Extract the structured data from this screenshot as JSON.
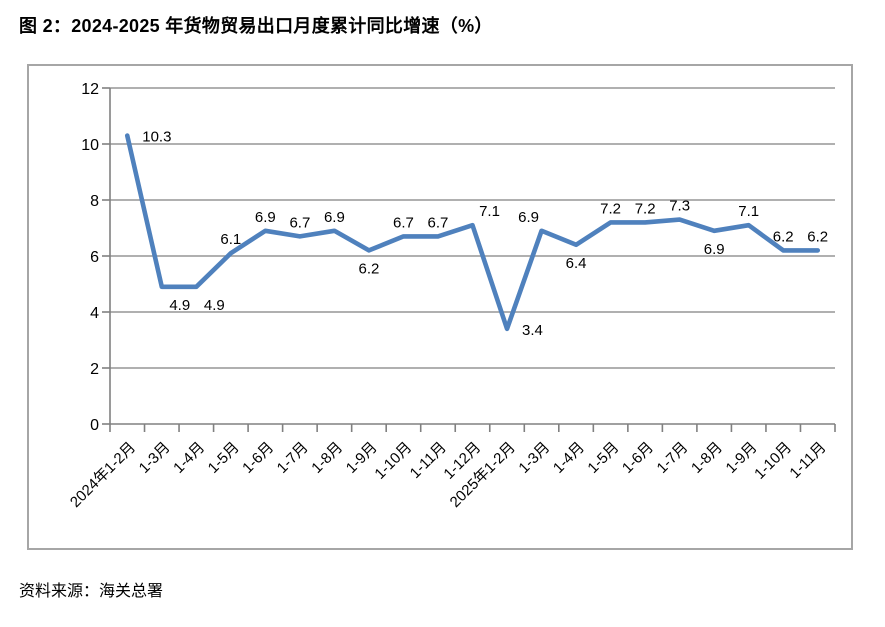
{
  "page": {
    "title": "图 2：2024-2025 年货物贸易出口月度累计同比增速（%）",
    "source": "资料来源：海关总署"
  },
  "colors": {
    "line": "#4F81BD",
    "gridline": "#969696",
    "axis": "#808080",
    "border": "#A6A6A6",
    "text": "#000000",
    "background": "#FFFFFF"
  },
  "chart_data": {
    "type": "line",
    "title": "图 2：2024-2025 年货物贸易出口月度累计同比增速（%）",
    "categories": [
      "2024年1-2月",
      "1-3月",
      "1-4月",
      "1-5月",
      "1-6月",
      "1-7月",
      "1-8月",
      "1-9月",
      "1-10月",
      "1-11月",
      "1-12月",
      "2025年1-2月",
      "1-3月",
      "1-4月",
      "1-5月",
      "1-6月",
      "1-7月",
      "1-8月",
      "1-9月",
      "1-10月",
      "1-11月"
    ],
    "values": [
      10.3,
      4.9,
      4.9,
      6.1,
      6.9,
      6.7,
      6.9,
      6.2,
      6.7,
      6.7,
      7.1,
      3.4,
      6.9,
      6.4,
      7.2,
      7.2,
      7.3,
      6.9,
      7.1,
      6.2,
      6.2
    ],
    "label_positions": [
      "right",
      "below-right",
      "below-right",
      "above",
      "above",
      "above",
      "above",
      "below",
      "above",
      "above",
      "above-right",
      "right",
      "above-left",
      "below",
      "above",
      "above",
      "above",
      "below",
      "above",
      "above",
      "above"
    ],
    "xlabel": "",
    "ylabel": "",
    "ylim": [
      0,
      12
    ],
    "yticks": [
      0,
      2,
      4,
      6,
      8,
      10,
      12
    ],
    "grid": "horizontal",
    "legend": "none",
    "x_label_rotation": -45,
    "data_labels_shown": true
  }
}
